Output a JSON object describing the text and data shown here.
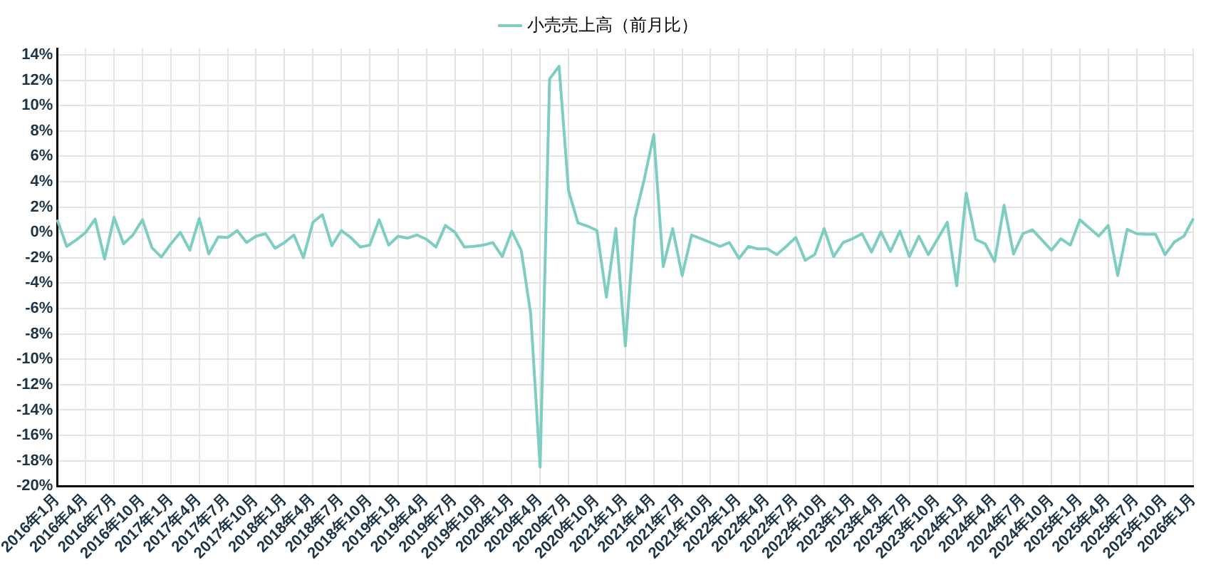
{
  "chart_data": {
    "type": "line",
    "categories": [
      "2016年1月",
      null,
      null,
      "2016年4月",
      null,
      null,
      "2016年7月",
      null,
      null,
      "2016年10月",
      null,
      null,
      "2017年1月",
      null,
      null,
      "2017年4月",
      null,
      null,
      "2017年7月",
      null,
      null,
      "2017年10月",
      null,
      null,
      "2018年1月",
      null,
      null,
      "2018年4月",
      null,
      null,
      "2018年7月",
      null,
      null,
      "2018年10月",
      null,
      null,
      "2019年1月",
      null,
      null,
      "2019年4月",
      null,
      null,
      "2019年7月",
      null,
      null,
      "2019年10月",
      null,
      null,
      "2020年1月",
      null,
      null,
      "2020年4月",
      null,
      null,
      "2020年7月",
      null,
      null,
      "2020年10月",
      null,
      null,
      "2021年1月",
      null,
      null,
      "2021年4月",
      null,
      null,
      "2021年7月",
      null,
      null,
      "2021年10月",
      null,
      null,
      "2022年1月",
      null,
      null,
      "2022年4月",
      null,
      null,
      "2022年7月",
      null,
      null,
      "2022年10月",
      null,
      null,
      "2023年1月",
      null,
      null,
      "2023年4月",
      null,
      null,
      "2023年7月",
      null,
      null,
      "2023年10月",
      null,
      null,
      "2024年1月",
      null,
      null,
      "2024年4月",
      null,
      null,
      "2024年7月",
      null,
      null,
      "2024年10月",
      null,
      null,
      "2025年1月",
      null,
      null,
      "2025年4月",
      null,
      null,
      "2025年7月",
      null,
      null,
      "2025年10月",
      null,
      null,
      "2026年1月"
    ],
    "series": [
      {
        "name": "小売売上高（前月比）",
        "color": "#7ecdc2",
        "values": [
          1.0,
          -1.1,
          -0.6,
          0,
          1.05,
          -2.1,
          1.2,
          -0.9,
          -0.2,
          1.0,
          -1.2,
          -1.95,
          -0.9,
          0,
          -1.4,
          1.1,
          -1.7,
          -0.35,
          -0.4,
          0.15,
          -0.8,
          -0.3,
          -0.1,
          -1.25,
          -0.8,
          -0.2,
          -2.0,
          0.8,
          1.4,
          -1.05,
          0.15,
          -0.4,
          -1.15,
          -1.0,
          1.0,
          -1.0,
          -0.3,
          -0.45,
          -0.2,
          -0.55,
          -1.15,
          0.55,
          0,
          -1.15,
          -1.1,
          -1.0,
          -0.8,
          -1.9,
          0.1,
          -1.4,
          -6.4,
          -18.5,
          12.1,
          13.1,
          3.3,
          0.75,
          0.5,
          0.15,
          -5.1,
          0.3,
          -8.95,
          1.1,
          4.2,
          7.7,
          -2.7,
          0.3,
          -3.4,
          -0.2,
          -0.5,
          -0.8,
          -1.1,
          -0.8,
          -2.05,
          -1.1,
          -1.3,
          -1.3,
          -1.75,
          -1.1,
          -0.4,
          -2.2,
          -1.75,
          0.3,
          -1.9,
          -0.8,
          -0.5,
          -0.1,
          -1.55,
          0.05,
          -1.5,
          0.1,
          -1.9,
          -0.3,
          -1.75,
          -0.5,
          0.8,
          -4.2,
          3.1,
          -0.55,
          -0.9,
          -2.3,
          2.15,
          -1.7,
          -0.1,
          0.2,
          -0.6,
          -1.4,
          -0.5,
          -1.0,
          1.0,
          0.35,
          -0.3,
          0.55,
          -3.4,
          0.25,
          -0.1,
          -0.15,
          -0.15,
          -1.75,
          -0.75,
          -0.3,
          1.1
        ]
      }
    ],
    "ylim": [
      -20,
      14.5
    ],
    "yticks": [
      {
        "value": -20,
        "label": "-20%"
      },
      {
        "value": -18,
        "label": "-18%"
      },
      {
        "value": -16,
        "label": "-16%"
      },
      {
        "value": -14,
        "label": "-14%"
      },
      {
        "value": -12,
        "label": "-12%"
      },
      {
        "value": -10,
        "label": "-10%"
      },
      {
        "value": -8,
        "label": "-8%"
      },
      {
        "value": -6,
        "label": "-6%"
      },
      {
        "value": -4,
        "label": "-4%"
      },
      {
        "value": -2,
        "label": "-2%"
      },
      {
        "value": 0,
        "label": "0%"
      },
      {
        "value": 2,
        "label": "2%"
      },
      {
        "value": 4,
        "label": "4%"
      },
      {
        "value": 6,
        "label": "6%"
      },
      {
        "value": 8,
        "label": "8%"
      },
      {
        "value": 10,
        "label": "10%"
      },
      {
        "value": 12,
        "label": "12%"
      },
      {
        "value": 14,
        "label": "14%"
      }
    ],
    "grid": true,
    "legend": "top",
    "marker": "none",
    "line_style": "solid"
  }
}
